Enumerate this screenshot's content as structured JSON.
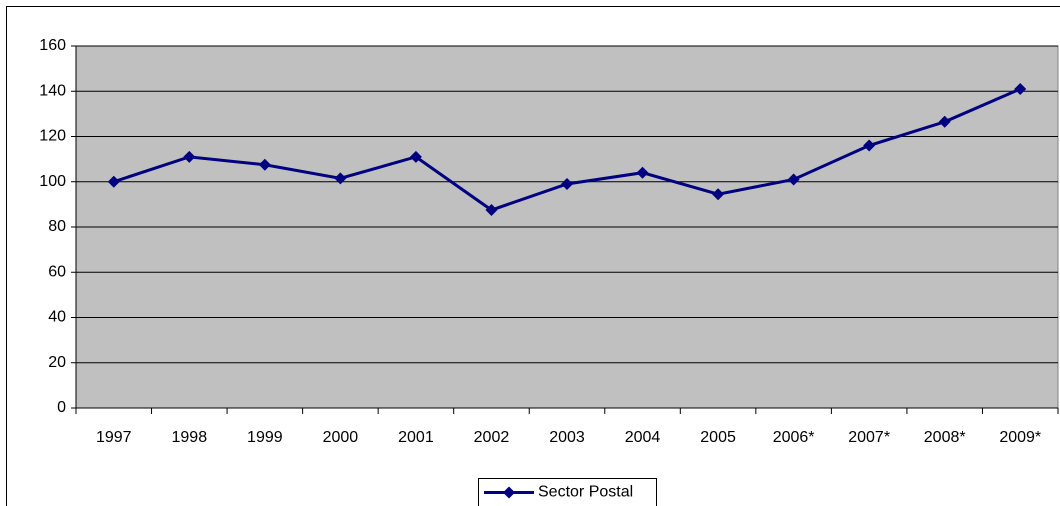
{
  "chart_data": {
    "type": "line",
    "categories": [
      "1997",
      "1998",
      "1999",
      "2000",
      "2001",
      "2002",
      "2003",
      "2004",
      "2005",
      "2006*",
      "2007*",
      "2008*",
      "2009*"
    ],
    "series": [
      {
        "name": "Sector Postal",
        "color": "#000080",
        "values": [
          100,
          111,
          107.5,
          101.5,
          111,
          87.5,
          99,
          104,
          94.5,
          101,
          116,
          126.5,
          141
        ]
      }
    ],
    "ylim": [
      0,
      160
    ],
    "yticks": [
      0,
      20,
      40,
      60,
      80,
      100,
      120,
      140,
      160
    ],
    "grid": true,
    "legend": "bottom"
  }
}
